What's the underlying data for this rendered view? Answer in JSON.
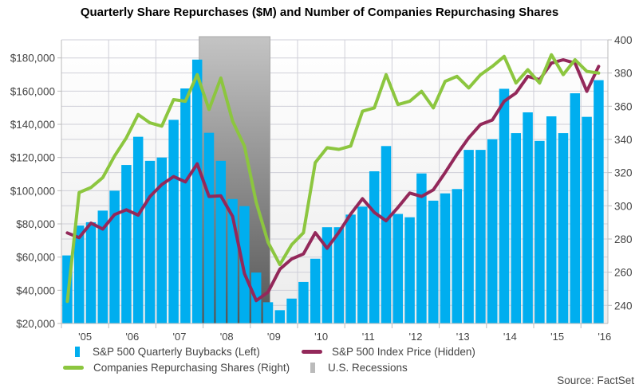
{
  "chart_data": {
    "type": "bar+line",
    "title": "Quarterly Share Repurchases ($M) and Number of Companies Repurchasing Shares",
    "source": "Source: FactSet",
    "x": [
      "2005 Q1",
      "2005 Q2",
      "2005 Q3",
      "2005 Q4",
      "2006 Q1",
      "2006 Q2",
      "2006 Q3",
      "2006 Q4",
      "2007 Q1",
      "2007 Q2",
      "2007 Q3",
      "2007 Q4",
      "2008 Q1",
      "2008 Q2",
      "2008 Q3",
      "2008 Q4",
      "2009 Q1",
      "2009 Q2",
      "2009 Q3",
      "2009 Q4",
      "2010 Q1",
      "2010 Q2",
      "2010 Q3",
      "2010 Q4",
      "2011 Q1",
      "2011 Q2",
      "2011 Q3",
      "2011 Q4",
      "2012 Q1",
      "2012 Q2",
      "2012 Q3",
      "2012 Q4",
      "2013 Q1",
      "2013 Q2",
      "2013 Q3",
      "2013 Q4",
      "2014 Q1",
      "2014 Q2",
      "2014 Q3",
      "2014 Q4",
      "2015 Q1",
      "2015 Q2",
      "2015 Q3",
      "2015 Q4",
      "2016 Q1",
      "2016 Q2"
    ],
    "x_tick_labels": [
      "'05",
      "'06",
      "'07",
      "'08",
      "'09",
      "'10",
      "'11",
      "'12",
      "'13",
      "'14",
      "'15",
      "'16"
    ],
    "left_axis": {
      "ylim": [
        20000,
        190900
      ],
      "ticks": [
        20000,
        40000,
        60000,
        80000,
        100000,
        120000,
        140000,
        160000,
        180000
      ],
      "tick_labels": [
        "$20,000",
        "$40,000",
        "$60,000",
        "$80,000",
        "$100,000",
        "$120,000",
        "$140,000",
        "$160,000",
        "$180,000"
      ]
    },
    "right_axis": {
      "ylim": [
        229.1,
        400
      ],
      "ticks": [
        240,
        260,
        280,
        300,
        320,
        340,
        360,
        380,
        400
      ],
      "tick_labels": [
        "240",
        "260",
        "280",
        "300",
        "320",
        "340",
        "360",
        "380",
        "400"
      ]
    },
    "grid": true,
    "legend_placement": "bottom",
    "series": [
      {
        "name": "S&P 500 Quarterly Buybacks (Left)",
        "type": "bar",
        "axis": "left",
        "color": "#00aeef",
        "values": [
          61000,
          79000,
          81000,
          88000,
          100000,
          115500,
          132500,
          118000,
          120000,
          142700,
          161600,
          179000,
          134900,
          118000,
          95000,
          90700,
          50700,
          32800,
          28000,
          35000,
          45000,
          59000,
          78000,
          78000,
          85600,
          90400,
          111700,
          126900,
          86000,
          84000,
          110400,
          94000,
          98400,
          101000,
          124600,
          124600,
          131000,
          161400,
          134700,
          147200,
          130000,
          144800,
          134700,
          158700,
          144500,
          166600
        ]
      },
      {
        "name": "S&P 500 Index Price (Hidden)",
        "type": "line",
        "axis": "right",
        "color": "#93285a",
        "values": [
          283.7,
          280.8,
          289.6,
          286,
          294.7,
          297.6,
          294.4,
          305.6,
          312.8,
          317.6,
          314.4,
          325.3,
          305.6,
          306,
          293.6,
          259.2,
          242.9,
          248,
          261.8,
          268,
          271,
          283.8,
          274.4,
          284,
          295,
          304.3,
          296,
          291,
          299,
          307.7,
          305.6,
          309.6,
          320,
          331,
          341,
          349,
          351.7,
          363,
          368,
          378,
          376,
          386,
          388,
          386,
          369,
          384
        ]
      },
      {
        "name": "Companies Repurchasing Shares (Right)",
        "type": "line",
        "axis": "right",
        "color": "#8cc63f",
        "values": [
          242.4,
          308,
          311,
          317,
          330,
          341,
          355,
          350,
          348,
          364,
          363,
          379,
          358,
          377,
          351,
          336,
          302,
          278,
          264.6,
          276.6,
          283.8,
          326,
          335,
          334,
          336,
          357,
          359,
          379,
          361,
          363,
          369,
          359,
          375,
          378,
          371,
          379,
          384,
          390,
          374,
          382,
          374,
          391,
          379,
          388,
          381,
          380
        ]
      },
      {
        "name": "U.S. Recessions",
        "type": "shading",
        "color": "#bbbbbb",
        "ranges": [
          [
            "2007-12",
            "2009-06"
          ]
        ]
      }
    ]
  }
}
